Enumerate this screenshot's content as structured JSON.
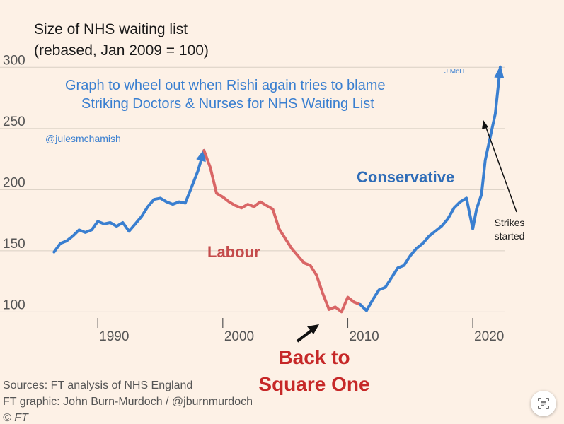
{
  "chart_data": {
    "type": "line",
    "title": "Size of NHS waiting list",
    "subtitle": "(rebased, Jan 2009 = 100)",
    "ylim": [
      95,
      310
    ],
    "xlim": [
      1985.8,
      2022.6
    ],
    "yticks": [
      "300",
      "250",
      "200",
      "150",
      "100"
    ],
    "xticks": [
      "1990",
      "2000",
      "2010",
      "2020"
    ],
    "grid": true,
    "series": [
      {
        "name": "Conservative",
        "color": "#3a7fd0",
        "points": [
          [
            1986.5,
            149
          ],
          [
            1987.0,
            156
          ],
          [
            1987.5,
            158
          ],
          [
            1988.0,
            162
          ],
          [
            1988.5,
            167
          ],
          [
            1989.0,
            165
          ],
          [
            1989.5,
            167
          ],
          [
            1990.0,
            174
          ],
          [
            1990.5,
            172
          ],
          [
            1991.0,
            173
          ],
          [
            1991.5,
            170
          ],
          [
            1992.0,
            173
          ],
          [
            1992.5,
            166
          ],
          [
            1993.0,
            172
          ],
          [
            1993.5,
            178
          ],
          [
            1994.0,
            186
          ],
          [
            1994.5,
            192
          ],
          [
            1995.0,
            193
          ],
          [
            1995.5,
            190
          ],
          [
            1996.0,
            188
          ],
          [
            1996.5,
            190
          ],
          [
            1997.0,
            189
          ],
          [
            1997.5,
            202
          ],
          [
            1998.0,
            215
          ],
          [
            1998.5,
            232
          ]
        ]
      },
      {
        "name": "Labour",
        "color": "#d96666",
        "points": [
          [
            1998.5,
            232
          ],
          [
            1999.0,
            218
          ],
          [
            1999.5,
            197
          ],
          [
            2000.0,
            194
          ],
          [
            2000.5,
            190
          ],
          [
            2001.0,
            187
          ],
          [
            2001.5,
            185
          ],
          [
            2002.0,
            188
          ],
          [
            2002.5,
            186
          ],
          [
            2003.0,
            190
          ],
          [
            2003.5,
            187
          ],
          [
            2004.0,
            184
          ],
          [
            2004.5,
            168
          ],
          [
            2005.0,
            160
          ],
          [
            2005.5,
            152
          ],
          [
            2006.0,
            146
          ],
          [
            2006.5,
            140
          ],
          [
            2007.0,
            138
          ],
          [
            2007.5,
            130
          ],
          [
            2008.0,
            115
          ],
          [
            2008.5,
            102
          ],
          [
            2009.0,
            104
          ],
          [
            2009.5,
            100
          ],
          [
            2010.0,
            112
          ],
          [
            2010.5,
            108
          ],
          [
            2011.0,
            106
          ]
        ]
      },
      {
        "name": "Conservative",
        "color": "#3a7fd0",
        "points": [
          [
            2011.0,
            106
          ],
          [
            2011.5,
            101
          ],
          [
            2012.0,
            110
          ],
          [
            2012.5,
            118
          ],
          [
            2013.0,
            120
          ],
          [
            2013.5,
            128
          ],
          [
            2014.0,
            136
          ],
          [
            2014.5,
            138
          ],
          [
            2015.0,
            146
          ],
          [
            2015.5,
            152
          ],
          [
            2016.0,
            156
          ],
          [
            2016.5,
            162
          ],
          [
            2017.0,
            166
          ],
          [
            2017.5,
            170
          ],
          [
            2018.0,
            176
          ],
          [
            2018.5,
            185
          ],
          [
            2019.0,
            190
          ],
          [
            2019.5,
            193
          ],
          [
            2020.0,
            168
          ],
          [
            2020.3,
            184
          ],
          [
            2020.7,
            196
          ],
          [
            2021.0,
            224
          ],
          [
            2021.5,
            248
          ],
          [
            2021.8,
            262
          ],
          [
            2022.2,
            300
          ]
        ]
      }
    ],
    "annotations": [
      {
        "text": "Labour",
        "color": "#c44b4b"
      },
      {
        "text": "Conservative",
        "color": "#2f6db8"
      },
      {
        "text": "Back to",
        "color": "#c62828"
      },
      {
        "text": "Square One",
        "color": "#c62828"
      },
      {
        "text": "Strikes",
        "color": "#1a1a1a"
      },
      {
        "text": "started",
        "color": "#1a1a1a"
      }
    ]
  },
  "overlay": {
    "headline_1": "Graph to wheel out when Rishi again tries to blame",
    "headline_2": "Striking Doctors & Nurses for NHS Waiting List",
    "initials": "J McH",
    "handle": "@julesmchamish"
  },
  "footer": {
    "sources": "Sources: FT analysis of NHS England",
    "graphic": "FT graphic: John Burn-Murdoch / @jburnmurdoch",
    "copyright": "© FT"
  },
  "colors": {
    "background": "#fdf1e6",
    "conservative": "#3a7fd0",
    "labour": "#d96666"
  },
  "icons": {
    "lens_button": "text-scan-icon"
  }
}
